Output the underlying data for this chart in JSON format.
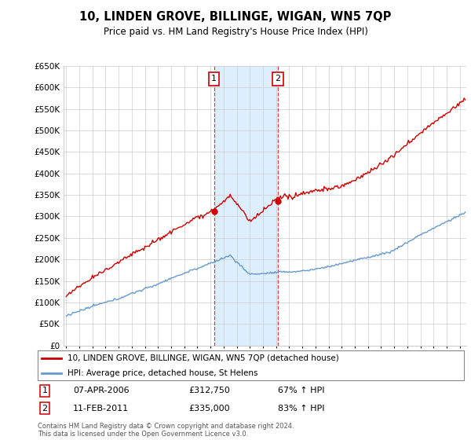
{
  "title": "10, LINDEN GROVE, BILLINGE, WIGAN, WN5 7QP",
  "subtitle": "Price paid vs. HM Land Registry's House Price Index (HPI)",
  "footnote": "Contains HM Land Registry data © Crown copyright and database right 2024.\nThis data is licensed under the Open Government Licence v3.0.",
  "legend_line1": "10, LINDEN GROVE, BILLINGE, WIGAN, WN5 7QP (detached house)",
  "legend_line2": "HPI: Average price, detached house, St Helens",
  "sale1_date": "07-APR-2006",
  "sale1_price": 312750,
  "sale1_pct": "67% ↑ HPI",
  "sale2_date": "11-FEB-2011",
  "sale2_price": 335000,
  "sale2_pct": "83% ↑ HPI",
  "sale1_year": 2006.27,
  "sale2_year": 2011.12,
  "ylim_min": 0,
  "ylim_max": 650000,
  "xlim_min": 1994.8,
  "xlim_max": 2025.5,
  "red_color": "#cc0000",
  "blue_color": "#6699cc",
  "shade_color": "#ddeeff",
  "grid_color": "#cccccc",
  "background_color": "#ffffff",
  "fig_width": 6.0,
  "fig_height": 5.6,
  "dpi": 100
}
